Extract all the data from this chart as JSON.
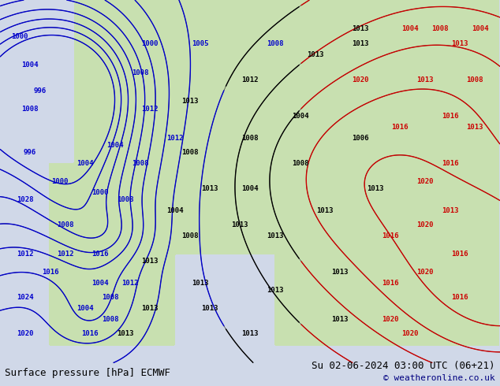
{
  "title_left": "Surface pressure [hPa] ECMWF",
  "title_right": "Su 02-06-2024 03:00 UTC (06+21)",
  "copyright": "© weatheronline.co.uk",
  "bg_color": "#d0d8e8",
  "land_color": "#c8e0b0",
  "fig_width": 6.34,
  "fig_height": 4.9,
  "dpi": 100,
  "bottom_bar_color": "#ffffff",
  "text_color": "#000000",
  "blue_contour_color": "#0000cc",
  "red_contour_color": "#cc0000",
  "black_contour_color": "#000000",
  "label_fontsize": 9,
  "footer_fontsize": 9
}
